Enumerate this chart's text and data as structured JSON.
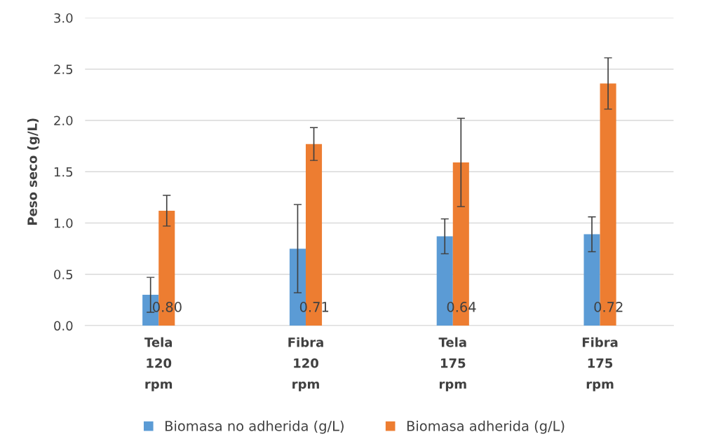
{
  "chart_data": {
    "type": "bar",
    "ylabel": "Peso seco (g/L)",
    "categories": [
      "Tela\n120\nrpm",
      "Fibra\n120\nrpm",
      "Tela\n175\nrpm",
      "Fibra\n175\nrpm"
    ],
    "series": [
      {
        "name": "Biomasa no adherida (g/L)",
        "color": "#5b9bd5",
        "values": [
          0.3,
          0.75,
          0.87,
          0.89
        ],
        "errors": [
          0.17,
          0.43,
          0.17,
          0.17
        ]
      },
      {
        "name": "Biomasa adherida (g/L)",
        "color": "#ed7d31",
        "values": [
          1.12,
          1.77,
          1.59,
          2.36
        ],
        "errors": [
          0.15,
          0.16,
          0.43,
          0.25
        ]
      }
    ],
    "ylim": [
      0,
      3.0
    ],
    "yticks": [
      {
        "value": 0,
        "label": "0.0"
      },
      {
        "value": 0.5,
        "label": "0.5"
      },
      {
        "value": 1,
        "label": "1.0"
      },
      {
        "value": 1.5,
        "label": "1.5"
      },
      {
        "value": 2,
        "label": "2.0"
      },
      {
        "value": 2.5,
        "label": "2.5"
      },
      {
        "value": 3,
        "label": "3.0"
      }
    ],
    "grid": "y",
    "legend": "bottom",
    "annotations": [
      {
        "text": "0.80",
        "x": "Tela\n120\nrpm",
        "y": 0.17
      },
      {
        "text": "0.71",
        "x": "Fibra\n120\nrpm",
        "y": 0.17
      },
      {
        "text": "0.64",
        "x": "Tela\n175\nrpm",
        "y": 0.17
      },
      {
        "text": "0.72",
        "x": "Fibra\n175\nrpm",
        "y": 0.17
      }
    ]
  }
}
